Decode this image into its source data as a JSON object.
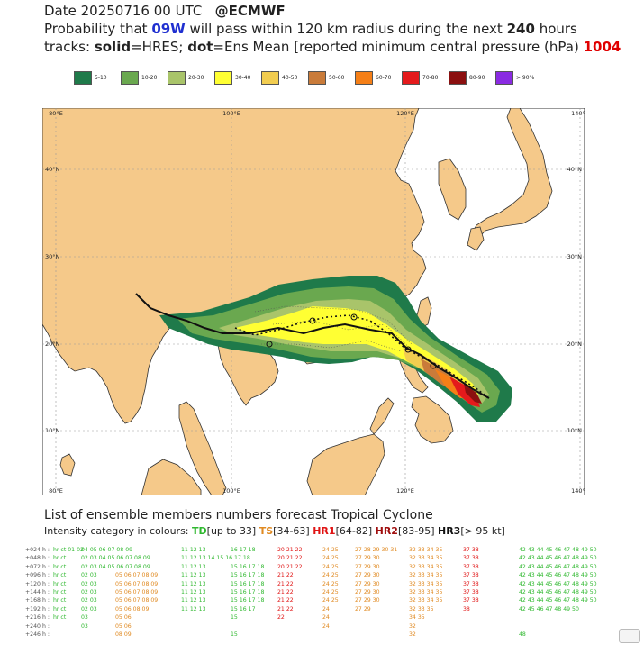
{
  "header": {
    "line1_date": "Date 20250716 00 UTC",
    "line1_source": "@ECMWF",
    "line2_pre": "Probability that",
    "line2_storm": "09W",
    "line2_mid": "will pass within 120 km radius during the next",
    "line2_hours": "240",
    "line2_post": "hours",
    "line3_tracks": "tracks:",
    "line3_solid": "solid",
    "line3_solid_def": "=HRES;",
    "line3_dot": "dot",
    "line3_dot_def": "=Ens Mean [reported minimum central pressure (hPa)",
    "line3_pressure": "1004"
  },
  "legend": [
    {
      "label": "5-10",
      "color": "#1f7a4a"
    },
    {
      "label": "10-20",
      "color": "#6aa84f"
    },
    {
      "label": "20-30",
      "color": "#a9c46a"
    },
    {
      "label": "30-40",
      "color": "#ffff33"
    },
    {
      "label": "40-50",
      "color": "#f2cd50"
    },
    {
      "label": "50-60",
      "color": "#c97b3a"
    },
    {
      "label": "60-70",
      "color": "#f57f17"
    },
    {
      "label": "70-80",
      "color": "#e41a1c"
    },
    {
      "label": "80-90",
      "color": "#8b1010"
    },
    {
      "label": "> 90%",
      "color": "#8a2be2"
    }
  ],
  "map": {
    "lon_labels": [
      "80°E",
      "100°E",
      "120°E",
      "140°E"
    ],
    "lat_labels": [
      "40°N",
      "30°N",
      "20°N",
      "10°N"
    ],
    "colors": {
      "land": "#f5c98a",
      "sea": "#ffffff",
      "coast": "#333333",
      "grid": "#999999"
    }
  },
  "ensemble": {
    "title": "List of ensemble members numbers forecast Tropical Cyclone",
    "intensity_prefix": "Intensity category in colours:",
    "cat_td": "TD",
    "cat_td_range": "[up to 33]",
    "cat_ts": "TS",
    "cat_ts_range": "[34-63]",
    "cat_hr1": "HR1",
    "cat_hr1_range": "[64-82]",
    "cat_hr2": "HR2",
    "cat_hr2_range": "[83-95]",
    "cat_hr3": "HR3",
    "cat_hr3_range": "[> 95 kt]",
    "rows": [
      {
        "label": "+024 h :",
        "hv": "hr ct 01 02",
        "g1": "04 05 06 07 08 09",
        "g2": "",
        "g3": "11 12 13",
        "g4": "16 17 18",
        "g5": "20 21 22",
        "g6": "24 25",
        "g7": "27 28 29 30 31",
        "g8": "32 33 34 35",
        "g9": "37 38",
        "g10": "42 43 44 45 46 47 48 49 50"
      },
      {
        "label": "+048 h :",
        "hv": "hr ct",
        "g1": "02 03 04 05 06 07 08 09",
        "g2": "",
        "g3": "11 12 13 14 15 16 17 18",
        "g4": "",
        "g5": "20 21 22",
        "g6": "24 25",
        "g7": "27 29 30",
        "g8": "32 33 34 35",
        "g9": "37 38",
        "g10": "42 43 44 45 46 47 48 49 50"
      },
      {
        "label": "+072 h :",
        "hv": "hr ct",
        "g1": "02 03 04 05 06 07 08 09",
        "g2": "",
        "g3": "11 12 13",
        "g4": "15 16 17 18",
        "g5": "20 21 22",
        "g6": "24 25",
        "g7": "27 29 30",
        "g8": "32 33 34 35",
        "g9": "37 38",
        "g10": "42 43 44 45 46 47 48 49 50"
      },
      {
        "label": "+096 h :",
        "hv": "hr ct",
        "g1": "02 03",
        "g2": "05 06 07 08 09",
        "g3": "11 12 13",
        "g4": "15 16 17 18",
        "g5": "21 22",
        "g6": "24 25",
        "g7": "27 29 30",
        "g8": "32 33 34 35",
        "g9": "37 38",
        "g10": "42 43 44 45 46 47 48 49 50"
      },
      {
        "label": "+120 h :",
        "hv": "hr ct",
        "g1": "02 03",
        "g2": "05 06 07 08 09",
        "g3": "11 12 13",
        "g4": "15 16 17 18",
        "g5": "21 22",
        "g6": "24 25",
        "g7": "27 29 30",
        "g8": "32 33 34 35",
        "g9": "37 38",
        "g10": "42 43 44 45 46 47 48 49 50"
      },
      {
        "label": "+144 h :",
        "hv": "hr ct",
        "g1": "02 03",
        "g2": "05 06 07 08 09",
        "g3": "11 12 13",
        "g4": "15 16 17 18",
        "g5": "21 22",
        "g6": "24 25",
        "g7": "27 29 30",
        "g8": "32 33 34 35",
        "g9": "37 38",
        "g10": "42 43 44 45 46 47 48 49 50"
      },
      {
        "label": "+168 h :",
        "hv": "hr ct",
        "g1": "02 03",
        "g2": "05 06 07 08 09",
        "g3": "11 12 13",
        "g4": "15 16 17 18",
        "g5": "21 22",
        "g6": "24 25",
        "g7": "27 29 30",
        "g8": "32 33 34 35",
        "g9": "37 38",
        "g10": "42 43 44 45 46 47 48 49 50"
      },
      {
        "label": "+192 h :",
        "hv": "hr ct",
        "g1": "02 03",
        "g2": "05 06 08 09",
        "g3": "11 12 13",
        "g4": "15 16 17",
        "g5": "21 22",
        "g6": "24",
        "g7": "27 29",
        "g8": "32 33 35",
        "g9": "38",
        "g10": "42 45 46 47 48 49 50"
      },
      {
        "label": "+216 h :",
        "hv": "hr ct",
        "g1": "03",
        "g2": "05 06",
        "g3": "",
        "g4": "15",
        "g5": "22",
        "g6": "24",
        "g7": "",
        "g8": "34 35",
        "g9": "",
        "g10": ""
      },
      {
        "label": "+240 h :",
        "hv": "",
        "g1": "03",
        "g2": "05 06",
        "g3": "",
        "g4": "",
        "g5": "",
        "g6": "24",
        "g7": "",
        "g8": "32",
        "g9": "",
        "g10": ""
      },
      {
        "label": "+246 h :",
        "hv": "",
        "g1": "",
        "g2": "08 09",
        "g3": "",
        "g4": "15",
        "g5": "",
        "g6": "",
        "g7": "",
        "g8": "32",
        "g9": "",
        "g10": "48"
      }
    ]
  }
}
